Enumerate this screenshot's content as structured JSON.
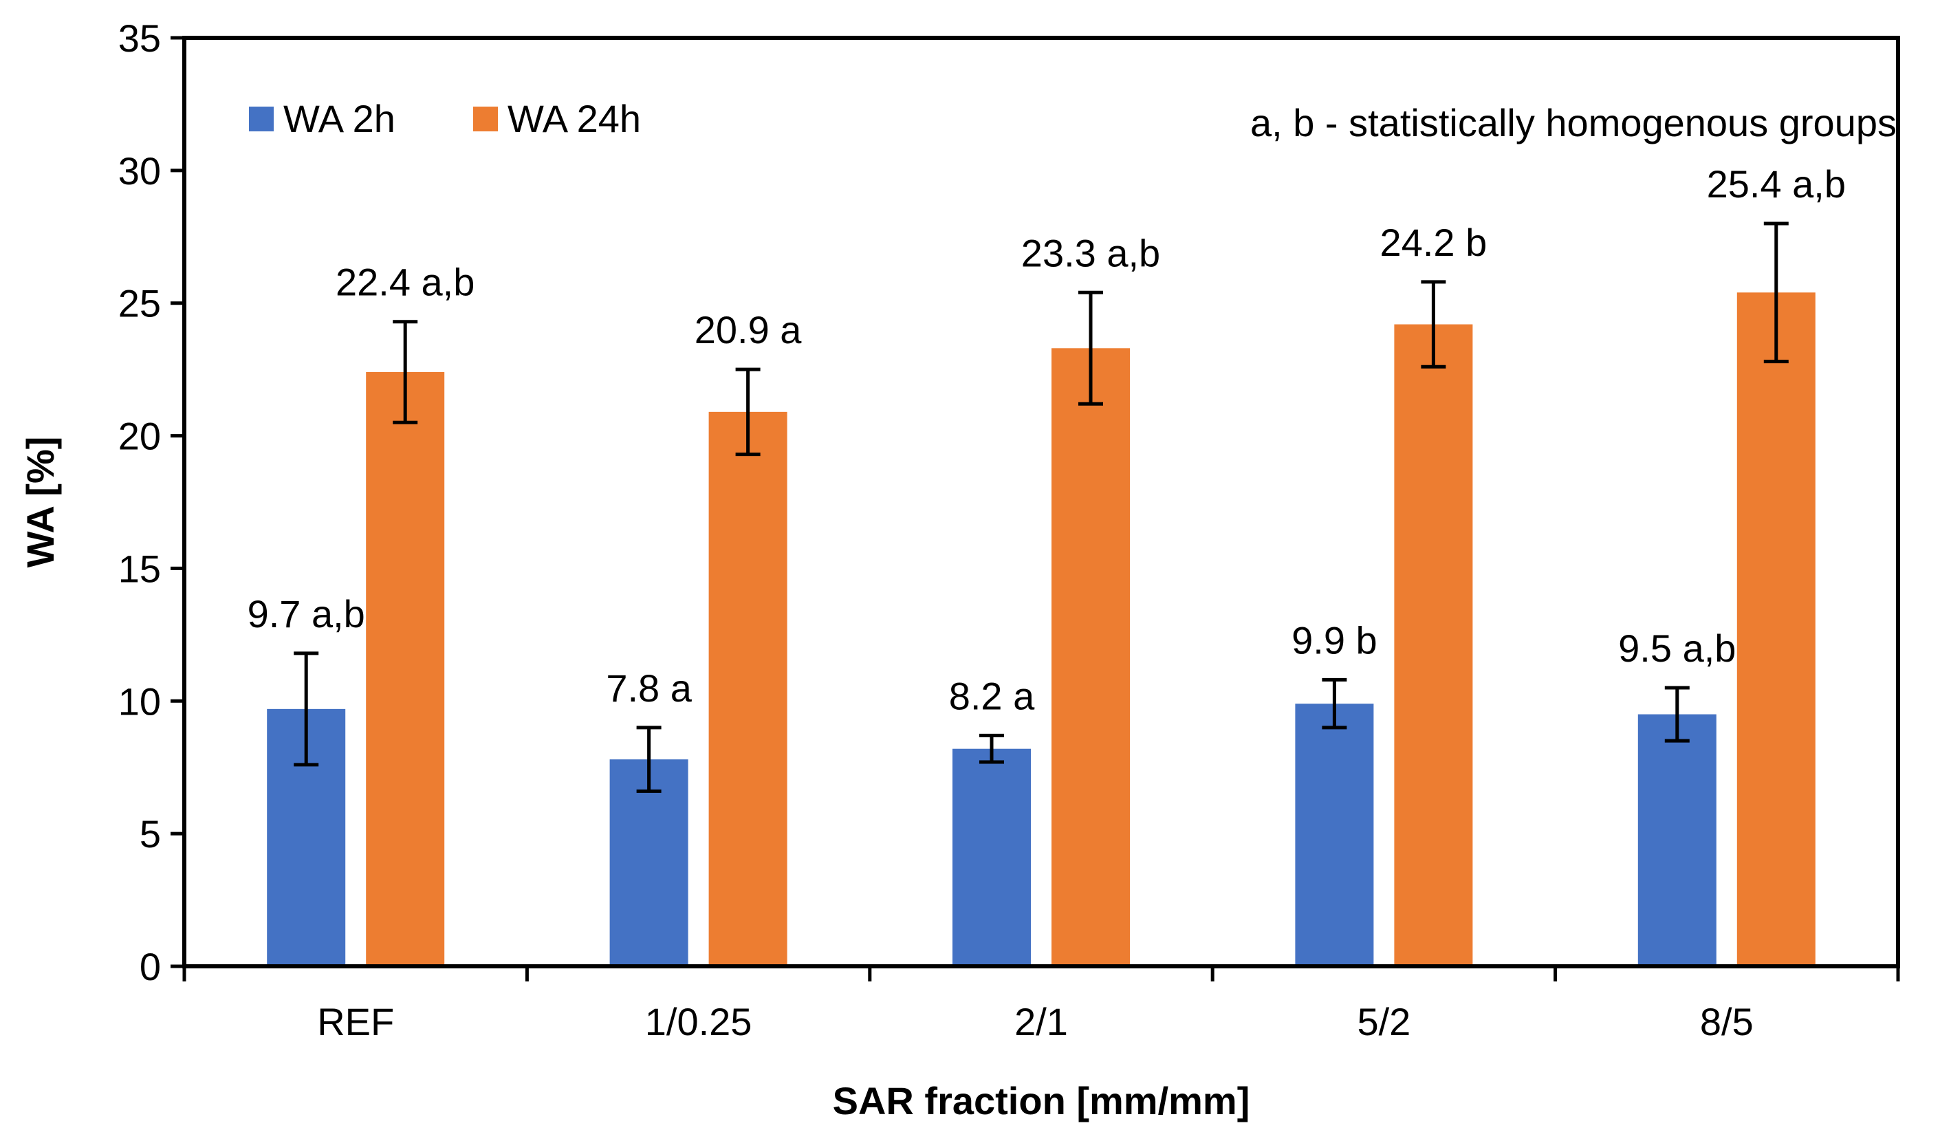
{
  "chart_data": {
    "type": "bar",
    "title": "",
    "xlabel": "SAR fraction [mm/mm]",
    "ylabel": "WA [%]",
    "ylim": [
      0,
      35
    ],
    "yticks": [
      0,
      5,
      10,
      15,
      20,
      25,
      30,
      35
    ],
    "grid": false,
    "legend_position": "top-left",
    "annotation": "a, b - statistically homogenous groups",
    "categories": [
      "REF",
      "1/0.25",
      "2/1",
      "5/2",
      "8/5"
    ],
    "series": [
      {
        "name": "WA 2h",
        "color": "#4472C4",
        "values": [
          9.7,
          7.8,
          8.2,
          9.9,
          9.5
        ],
        "errors": [
          2.1,
          1.2,
          0.5,
          0.9,
          1.0
        ],
        "labels": [
          "9.7 a,b",
          "7.8 a",
          "8.2 a",
          "9.9 b",
          "9.5 a,b"
        ]
      },
      {
        "name": "WA 24h",
        "color": "#ED7D31",
        "values": [
          22.4,
          20.9,
          23.3,
          24.2,
          25.4
        ],
        "errors": [
          1.9,
          1.6,
          2.1,
          1.6,
          2.6
        ],
        "labels": [
          "22.4 a,b",
          "20.9 a",
          "23.3 a,b",
          "24.2 b",
          "25.4 a,b"
        ]
      }
    ]
  }
}
